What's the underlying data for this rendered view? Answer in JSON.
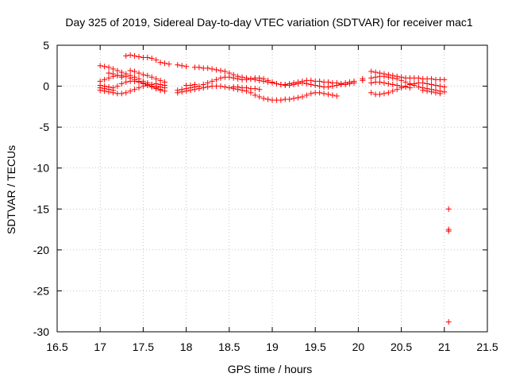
{
  "chart_data": {
    "type": "scatter",
    "title": "Day 325 of 2019, Sidereal Day-to-day VTEC variation (SDTVAR) for receiver mac1",
    "xlabel": "GPS time / hours",
    "ylabel": "SDTVAR / TECUs",
    "xlim": [
      16.5,
      21.5
    ],
    "ylim": [
      -30,
      5
    ],
    "xticks": [
      16.5,
      17,
      17.5,
      18,
      18.5,
      19,
      19.5,
      20,
      20.5,
      21,
      21.5
    ],
    "yticks": [
      5,
      0,
      -5,
      -10,
      -15,
      -20,
      -25,
      -30
    ],
    "xtick_labels": [
      "16.5",
      "17",
      "17.5",
      "18",
      "18.5",
      "19",
      "19.5",
      "20",
      "20.5",
      "21",
      "21.5"
    ],
    "ytick_labels": [
      "5",
      "0",
      "-5",
      "-10",
      "-15",
      "-20",
      "-25",
      "-30"
    ],
    "grid": true,
    "legend": "none",
    "series": [
      {
        "name": "mac1",
        "color": "#ff0000",
        "marker": "plus",
        "points": [
          [
            17.0,
            2.5
          ],
          [
            17.05,
            2.4
          ],
          [
            17.1,
            2.3
          ],
          [
            17.15,
            2.1
          ],
          [
            17.2,
            1.9
          ],
          [
            17.25,
            1.7
          ],
          [
            17.3,
            1.5
          ],
          [
            17.35,
            1.3
          ],
          [
            17.4,
            1.1
          ],
          [
            17.45,
            0.9
          ],
          [
            17.5,
            0.6
          ],
          [
            17.55,
            0.4
          ],
          [
            17.6,
            0.2
          ],
          [
            17.65,
            0.0
          ],
          [
            17.7,
            -0.1
          ],
          [
            17.75,
            -0.2
          ],
          [
            17.0,
            0.6
          ],
          [
            17.05,
            0.8
          ],
          [
            17.1,
            1.0
          ],
          [
            17.15,
            1.2
          ],
          [
            17.2,
            1.3
          ],
          [
            17.25,
            1.3
          ],
          [
            17.3,
            1.2
          ],
          [
            17.35,
            1.0
          ],
          [
            17.4,
            0.8
          ],
          [
            17.45,
            0.6
          ],
          [
            17.5,
            0.4
          ],
          [
            17.55,
            0.2
          ],
          [
            17.6,
            0.0
          ],
          [
            17.65,
            -0.2
          ],
          [
            17.7,
            -0.4
          ],
          [
            17.75,
            -0.6
          ],
          [
            17.0,
            0.1
          ],
          [
            17.05,
            0.0
          ],
          [
            17.1,
            -0.1
          ],
          [
            17.15,
            -0.2
          ],
          [
            17.2,
            0.0
          ],
          [
            17.25,
            0.3
          ],
          [
            17.3,
            0.5
          ],
          [
            17.35,
            0.6
          ],
          [
            17.4,
            0.6
          ],
          [
            17.45,
            0.5
          ],
          [
            17.5,
            0.3
          ],
          [
            17.55,
            0.1
          ],
          [
            17.6,
            -0.1
          ],
          [
            17.65,
            -0.3
          ],
          [
            17.7,
            -0.5
          ],
          [
            17.0,
            -0.5
          ],
          [
            17.05,
            -0.6
          ],
          [
            17.1,
            -0.7
          ],
          [
            17.15,
            -0.8
          ],
          [
            17.2,
            -0.9
          ],
          [
            17.25,
            -0.9
          ],
          [
            17.3,
            -0.8
          ],
          [
            17.35,
            -0.6
          ],
          [
            17.4,
            -0.4
          ],
          [
            17.45,
            -0.2
          ],
          [
            17.5,
            0.0
          ],
          [
            17.55,
            0.1
          ],
          [
            17.6,
            0.2
          ],
          [
            17.65,
            0.3
          ],
          [
            17.7,
            0.2
          ],
          [
            17.75,
            0.1
          ],
          [
            17.0,
            -0.2
          ],
          [
            17.05,
            -0.3
          ],
          [
            17.1,
            -0.4
          ],
          [
            17.15,
            -0.5
          ],
          [
            17.35,
            1.9
          ],
          [
            17.4,
            1.8
          ],
          [
            17.45,
            1.6
          ],
          [
            17.5,
            1.4
          ],
          [
            17.55,
            1.3
          ],
          [
            17.6,
            1.1
          ],
          [
            17.65,
            0.9
          ],
          [
            17.7,
            0.7
          ],
          [
            17.75,
            0.5
          ],
          [
            17.1,
            1.6
          ],
          [
            17.15,
            1.5
          ],
          [
            17.2,
            1.3
          ],
          [
            17.25,
            1.1
          ],
          [
            17.3,
            3.7
          ],
          [
            17.35,
            3.8
          ],
          [
            17.4,
            3.7
          ],
          [
            17.45,
            3.6
          ],
          [
            17.5,
            3.5
          ],
          [
            17.55,
            3.5
          ],
          [
            17.6,
            3.4
          ],
          [
            17.65,
            3.2
          ],
          [
            17.7,
            2.9
          ],
          [
            17.75,
            2.8
          ],
          [
            17.8,
            2.7
          ],
          [
            17.9,
            2.6
          ],
          [
            17.95,
            2.5
          ],
          [
            18.0,
            2.4
          ],
          [
            18.1,
            2.3
          ],
          [
            18.15,
            2.3
          ],
          [
            18.2,
            2.2
          ],
          [
            18.25,
            2.2
          ],
          [
            18.3,
            2.1
          ],
          [
            18.35,
            2.0
          ],
          [
            18.4,
            1.9
          ],
          [
            18.45,
            1.8
          ],
          [
            18.5,
            1.6
          ],
          [
            18.55,
            1.4
          ],
          [
            18.6,
            1.2
          ],
          [
            18.65,
            1.1
          ],
          [
            18.7,
            1.0
          ],
          [
            18.75,
            0.9
          ],
          [
            18.8,
            0.8
          ],
          [
            18.85,
            0.7
          ],
          [
            18.9,
            0.6
          ],
          [
            18.95,
            0.5
          ],
          [
            19.0,
            0.4
          ],
          [
            19.05,
            0.3
          ],
          [
            19.1,
            0.2
          ],
          [
            19.15,
            0.2
          ],
          [
            19.2,
            0.3
          ],
          [
            19.25,
            0.4
          ],
          [
            19.3,
            0.5
          ],
          [
            19.35,
            0.6
          ],
          [
            19.4,
            0.7
          ],
          [
            19.45,
            0.7
          ],
          [
            19.5,
            0.6
          ],
          [
            19.55,
            0.6
          ],
          [
            19.6,
            0.5
          ],
          [
            19.65,
            0.5
          ],
          [
            19.7,
            0.4
          ],
          [
            19.75,
            0.4
          ],
          [
            19.8,
            0.3
          ],
          [
            19.85,
            0.4
          ],
          [
            19.9,
            0.5
          ],
          [
            19.95,
            0.6
          ],
          [
            17.9,
            -0.5
          ],
          [
            17.95,
            -0.4
          ],
          [
            18.0,
            -0.3
          ],
          [
            18.05,
            -0.2
          ],
          [
            18.1,
            -0.1
          ],
          [
            18.15,
            0.0
          ],
          [
            18.2,
            0.2
          ],
          [
            18.25,
            0.4
          ],
          [
            18.3,
            0.6
          ],
          [
            18.35,
            0.8
          ],
          [
            18.4,
            1.0
          ],
          [
            18.45,
            1.1
          ],
          [
            18.5,
            1.1
          ],
          [
            18.55,
            1.0
          ],
          [
            18.6,
            0.9
          ],
          [
            18.65,
            0.8
          ],
          [
            18.7,
            0.8
          ],
          [
            18.75,
            0.9
          ],
          [
            18.8,
            1.0
          ],
          [
            18.85,
            1.0
          ],
          [
            18.9,
            0.9
          ],
          [
            18.95,
            0.7
          ],
          [
            19.0,
            0.5
          ],
          [
            19.05,
            0.3
          ],
          [
            19.1,
            0.2
          ],
          [
            19.15,
            0.1
          ],
          [
            19.2,
            0.1
          ],
          [
            19.25,
            0.2
          ],
          [
            19.3,
            0.3
          ],
          [
            19.35,
            0.4
          ],
          [
            19.4,
            0.3
          ],
          [
            19.45,
            0.2
          ],
          [
            19.5,
            0.1
          ],
          [
            19.55,
            0.0
          ],
          [
            19.6,
            -0.1
          ],
          [
            19.65,
            -0.1
          ],
          [
            19.7,
            0.0
          ],
          [
            19.75,
            0.1
          ],
          [
            19.8,
            0.2
          ],
          [
            19.85,
            0.2
          ],
          [
            19.9,
            0.3
          ],
          [
            19.95,
            0.4
          ],
          [
            17.9,
            -0.8
          ],
          [
            17.95,
            -0.7
          ],
          [
            18.0,
            -0.6
          ],
          [
            18.05,
            -0.5
          ],
          [
            18.1,
            -0.4
          ],
          [
            18.15,
            -0.3
          ],
          [
            18.2,
            -0.2
          ],
          [
            18.25,
            -0.1
          ],
          [
            18.3,
            0.0
          ],
          [
            18.35,
            0.0
          ],
          [
            18.4,
            0.0
          ],
          [
            18.45,
            -0.1
          ],
          [
            18.5,
            -0.2
          ],
          [
            18.55,
            -0.3
          ],
          [
            18.6,
            -0.4
          ],
          [
            18.65,
            -0.5
          ],
          [
            18.7,
            -0.6
          ],
          [
            18.75,
            -0.8
          ],
          [
            18.8,
            -1.1
          ],
          [
            18.85,
            -1.3
          ],
          [
            18.9,
            -1.5
          ],
          [
            18.95,
            -1.6
          ],
          [
            19.0,
            -1.7
          ],
          [
            19.05,
            -1.7
          ],
          [
            19.1,
            -1.7
          ],
          [
            19.15,
            -1.6
          ],
          [
            19.2,
            -1.6
          ],
          [
            19.25,
            -1.5
          ],
          [
            19.3,
            -1.4
          ],
          [
            19.35,
            -1.3
          ],
          [
            19.4,
            -1.1
          ],
          [
            19.45,
            -0.9
          ],
          [
            19.5,
            -0.8
          ],
          [
            19.55,
            -0.8
          ],
          [
            19.6,
            -0.9
          ],
          [
            19.65,
            -1.0
          ],
          [
            19.7,
            -1.1
          ],
          [
            19.75,
            -1.2
          ],
          [
            18.55,
            -0.1
          ],
          [
            18.6,
            -0.1
          ],
          [
            18.65,
            -0.2
          ],
          [
            18.7,
            -0.2
          ],
          [
            18.75,
            -0.3
          ],
          [
            18.8,
            -0.3
          ],
          [
            18.85,
            -0.4
          ],
          [
            18.0,
            0.1
          ],
          [
            18.05,
            0.1
          ],
          [
            18.1,
            0.2
          ],
          [
            20.15,
            1.8
          ],
          [
            20.2,
            1.7
          ],
          [
            20.25,
            1.6
          ],
          [
            20.3,
            1.5
          ],
          [
            20.35,
            1.4
          ],
          [
            20.4,
            1.3
          ],
          [
            20.45,
            1.2
          ],
          [
            20.5,
            1.1
          ],
          [
            20.55,
            1.0
          ],
          [
            20.6,
            1.0
          ],
          [
            20.65,
            1.0
          ],
          [
            20.7,
            1.0
          ],
          [
            20.75,
            0.9
          ],
          [
            20.8,
            0.9
          ],
          [
            20.85,
            0.9
          ],
          [
            20.9,
            0.8
          ],
          [
            20.95,
            0.8
          ],
          [
            21.0,
            0.8
          ],
          [
            20.15,
            1.0
          ],
          [
            20.2,
            1.1
          ],
          [
            20.25,
            1.2
          ],
          [
            20.3,
            1.2
          ],
          [
            20.35,
            1.1
          ],
          [
            20.4,
            1.0
          ],
          [
            20.45,
            0.9
          ],
          [
            20.5,
            0.7
          ],
          [
            20.55,
            0.5
          ],
          [
            20.6,
            0.3
          ],
          [
            20.65,
            0.1
          ],
          [
            20.7,
            -0.1
          ],
          [
            20.75,
            -0.2
          ],
          [
            20.8,
            -0.3
          ],
          [
            20.85,
            -0.4
          ],
          [
            20.9,
            -0.5
          ],
          [
            20.95,
            -0.6
          ],
          [
            21.0,
            -0.7
          ],
          [
            20.15,
            -0.8
          ],
          [
            20.2,
            -1.0
          ],
          [
            20.25,
            -1.0
          ],
          [
            20.3,
            -0.9
          ],
          [
            20.35,
            -0.8
          ],
          [
            20.4,
            -0.6
          ],
          [
            20.45,
            -0.4
          ],
          [
            20.5,
            -0.2
          ],
          [
            20.55,
            0.0
          ],
          [
            20.6,
            0.2
          ],
          [
            20.65,
            0.3
          ],
          [
            20.7,
            0.4
          ],
          [
            20.75,
            0.4
          ],
          [
            20.8,
            0.3
          ],
          [
            20.85,
            0.2
          ],
          [
            20.9,
            0.1
          ],
          [
            20.95,
            0.0
          ],
          [
            21.0,
            -0.1
          ],
          [
            20.15,
            0.4
          ],
          [
            20.2,
            0.5
          ],
          [
            20.25,
            0.5
          ],
          [
            20.3,
            0.4
          ],
          [
            20.35,
            0.3
          ],
          [
            20.4,
            0.2
          ],
          [
            20.45,
            0.1
          ],
          [
            20.5,
            0.0
          ],
          [
            20.55,
            -0.1
          ],
          [
            20.6,
            -0.2
          ],
          [
            20.75,
            -0.5
          ],
          [
            20.8,
            -0.6
          ],
          [
            20.85,
            -0.7
          ],
          [
            20.9,
            -0.8
          ],
          [
            20.95,
            -0.9
          ],
          [
            20.05,
            0.9
          ],
          [
            20.05,
            0.7
          ],
          [
            21.05,
            -15.0
          ],
          [
            21.05,
            -17.5
          ],
          [
            21.05,
            -17.7
          ],
          [
            21.05,
            -28.8
          ]
        ]
      }
    ]
  }
}
